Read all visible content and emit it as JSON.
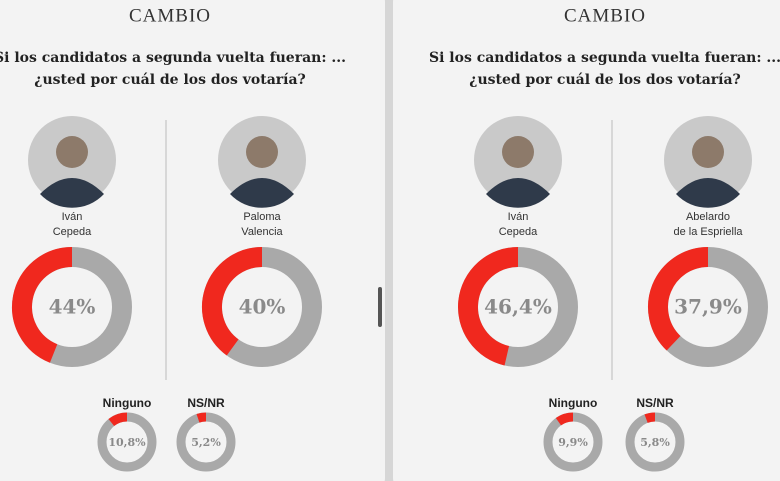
{
  "panels": [
    {
      "brand": "CAMBIO",
      "question": [
        "Si los candidatos a segunda vuelta fueran: ...",
        "¿usted por cuál de los dos votaría?"
      ],
      "candidates": [
        {
          "name": [
            "Iván",
            "Cepeda"
          ],
          "value": 44,
          "value_label": "44%"
        },
        {
          "name": [
            "Paloma",
            "Valencia"
          ],
          "value": 40,
          "value_label": "40%"
        }
      ],
      "others": [
        {
          "name": "Ninguno",
          "value": 10.8,
          "value_label": "10,8%"
        },
        {
          "name": "NS/NR",
          "value": 5.2,
          "value_label": "5,2%"
        }
      ]
    },
    {
      "brand": "CAMBIO",
      "question": [
        "Si los candidatos a segunda vuelta fueran: ...",
        "¿usted por cuál de los dos votaría?"
      ],
      "candidates": [
        {
          "name": [
            "Iván",
            "Cepeda"
          ],
          "value": 46.4,
          "value_label": "46,4%"
        },
        {
          "name": [
            "Abelardo",
            "de la Espriella"
          ],
          "value": 37.9,
          "value_label": "37,9%"
        }
      ],
      "others": [
        {
          "name": "Ninguno",
          "value": 9.9,
          "value_label": "9,9%"
        },
        {
          "name": "NS/NR",
          "value": 5.8,
          "value_label": "5,8%"
        }
      ]
    }
  ]
}
